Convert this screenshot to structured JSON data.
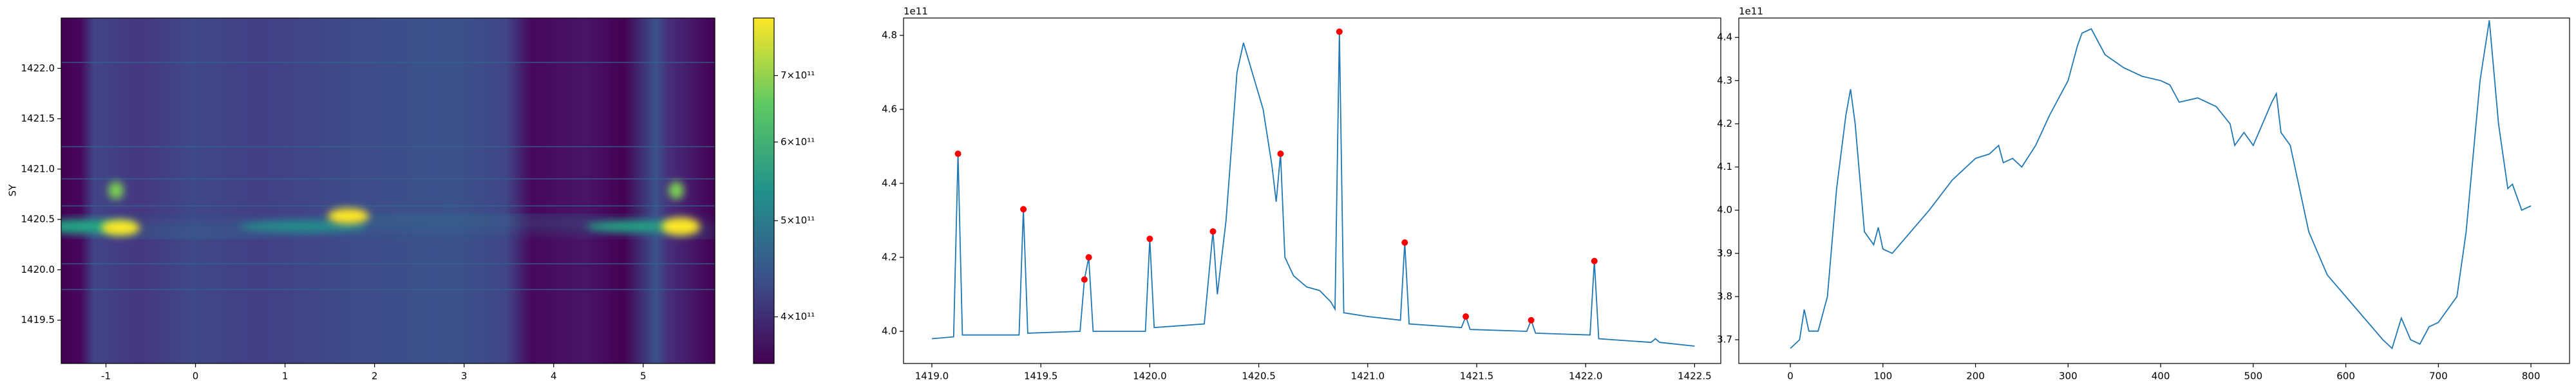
{
  "chart_data": [
    {
      "type": "heatmap",
      "ylabel": "SY",
      "xlim": [
        -1.5,
        5.8
      ],
      "ylim": [
        1419.07,
        1422.5
      ],
      "xticks": [
        -1,
        0,
        1,
        2,
        3,
        4,
        5
      ],
      "yticks": [
        1419.5,
        {
          "value": 1420,
          "label": "1420.0"
        },
        1420.5,
        {
          "value": 1421,
          "label": "1421.0"
        },
        1421.5,
        {
          "value": 1422,
          "label": "1422.0"
        }
      ],
      "colorbar": {
        "clim": [
          359000000000,
          800000000000
        ],
        "log": true,
        "ticks": [
          {
            "value": 400000000000,
            "label": "4×10¹¹"
          },
          {
            "value": 500000000000,
            "label": "5×10¹¹"
          },
          {
            "value": 600000000000,
            "label": "6×10¹¹"
          },
          {
            "value": 700000000000,
            "label": "7×10¹¹"
          }
        ]
      }
    },
    {
      "type": "line",
      "offset_text": "1e11",
      "color": "#1f77b4",
      "xlim": [
        1418.87,
        1422.62
      ],
      "ylim": [
        3.913,
        4.847
      ],
      "xticks": [
        {
          "value": 1419,
          "label": "1419.0"
        },
        1419.5,
        {
          "value": 1420,
          "label": "1420.0"
        },
        1420.5,
        {
          "value": 1421,
          "label": "1421.0"
        },
        1421.5,
        {
          "value": 1422,
          "label": "1422.0"
        },
        1422.5
      ],
      "yticks": [
        {
          "value": 4,
          "label": "4.0"
        },
        4.2,
        4.4,
        4.6,
        4.8
      ],
      "x": [
        1419.0,
        1419.1,
        1419.12,
        1419.14,
        1419.4,
        1419.42,
        1419.44,
        1419.68,
        1419.7,
        1419.72,
        1419.74,
        1419.98,
        1420.0,
        1420.02,
        1420.25,
        1420.29,
        1420.31,
        1420.35,
        1420.4,
        1420.43,
        1420.47,
        1420.52,
        1420.56,
        1420.58,
        1420.6,
        1420.62,
        1420.66,
        1420.72,
        1420.78,
        1420.83,
        1420.85,
        1420.87,
        1420.89,
        1421.0,
        1421.15,
        1421.17,
        1421.19,
        1421.43,
        1421.45,
        1421.47,
        1421.73,
        1421.75,
        1421.77,
        1422.02,
        1422.04,
        1422.06,
        1422.3,
        1422.32,
        1422.34,
        1422.5
      ],
      "values": [
        3.98,
        3.985,
        4.48,
        3.99,
        3.99,
        4.33,
        3.995,
        4.0,
        4.14,
        4.2,
        4.0,
        4.0,
        4.25,
        4.01,
        4.02,
        4.27,
        4.1,
        4.3,
        4.7,
        4.78,
        4.7,
        4.6,
        4.45,
        4.35,
        4.48,
        4.2,
        4.15,
        4.12,
        4.11,
        4.08,
        4.06,
        4.81,
        4.05,
        4.04,
        4.03,
        4.24,
        4.02,
        4.01,
        4.04,
        4.005,
        4.0,
        4.03,
        3.995,
        3.99,
        4.19,
        3.98,
        3.97,
        3.98,
        3.97,
        3.96
      ],
      "peaks": {
        "color": "red",
        "x": [
          1419.12,
          1419.42,
          1419.7,
          1419.72,
          1420.0,
          1420.29,
          1420.6,
          1420.87,
          1421.17,
          1421.45,
          1421.75,
          1422.04
        ],
        "values": [
          4.48,
          4.33,
          4.14,
          4.2,
          4.25,
          4.27,
          4.48,
          4.81,
          4.24,
          4.04,
          4.03,
          4.19
        ]
      }
    },
    {
      "type": "line",
      "offset_text": "1e11",
      "color": "#1f77b4",
      "xlim": [
        -55.7,
        841.7
      ],
      "ylim": [
        3.645,
        4.445
      ],
      "xticks": [
        0,
        100,
        200,
        300,
        400,
        500,
        600,
        700,
        800
      ],
      "yticks": [
        3.7,
        3.8,
        3.9,
        {
          "value": 4,
          "label": "4.0"
        },
        4.1,
        4.2,
        4.3,
        4.4
      ],
      "x": [
        0,
        10,
        15,
        20,
        30,
        40,
        50,
        60,
        65,
        70,
        80,
        90,
        95,
        100,
        110,
        130,
        150,
        175,
        200,
        215,
        225,
        230,
        240,
        250,
        265,
        280,
        300,
        310,
        315,
        325,
        340,
        360,
        380,
        400,
        410,
        420,
        440,
        460,
        475,
        480,
        490,
        500,
        510,
        520,
        525,
        530,
        540,
        550,
        560,
        570,
        580,
        600,
        620,
        640,
        650,
        660,
        670,
        680,
        690,
        700,
        720,
        730,
        745,
        755,
        765,
        775,
        780,
        790,
        800
      ],
      "values": [
        3.68,
        3.7,
        3.77,
        3.72,
        3.72,
        3.8,
        4.05,
        4.22,
        4.28,
        4.2,
        3.95,
        3.92,
        3.96,
        3.91,
        3.9,
        3.95,
        4.0,
        4.07,
        4.12,
        4.13,
        4.15,
        4.11,
        4.12,
        4.1,
        4.15,
        4.22,
        4.3,
        4.38,
        4.41,
        4.42,
        4.36,
        4.33,
        4.31,
        4.3,
        4.29,
        4.25,
        4.26,
        4.24,
        4.2,
        4.15,
        4.18,
        4.15,
        4.2,
        4.25,
        4.27,
        4.18,
        4.15,
        4.05,
        3.95,
        3.9,
        3.85,
        3.8,
        3.75,
        3.7,
        3.68,
        3.75,
        3.7,
        3.69,
        3.73,
        3.74,
        3.8,
        3.95,
        4.3,
        4.44,
        4.2,
        4.05,
        4.06,
        4.0,
        4.01
      ]
    }
  ]
}
